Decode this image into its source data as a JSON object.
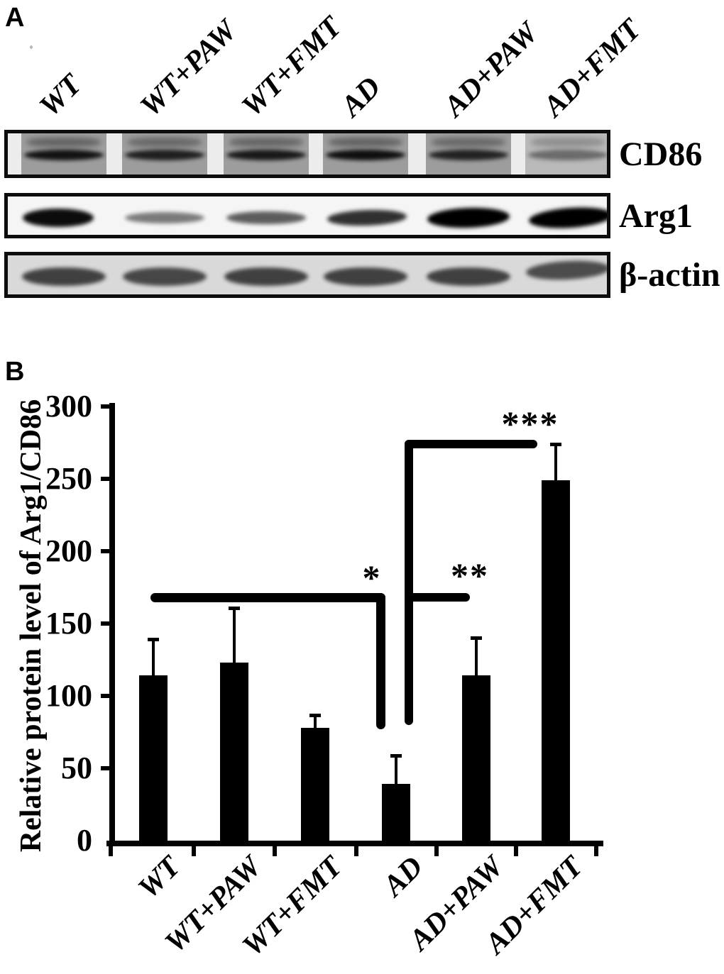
{
  "figure": {
    "panel_a": {
      "label": "A",
      "lane_labels": [
        "WT",
        "WT+PAW",
        "WT+FMT",
        "AD",
        "AD+PAW",
        "AD+FMT"
      ],
      "blots": [
        {
          "protein": "CD86",
          "band_intensities": [
            0.88,
            0.8,
            0.84,
            0.9,
            0.78,
            0.42
          ]
        },
        {
          "protein": "Arg1",
          "band_intensities": [
            0.95,
            0.5,
            0.62,
            0.8,
            1.0,
            1.0
          ]
        },
        {
          "protein": "β-actin",
          "band_intensities": [
            0.78,
            0.75,
            0.78,
            0.78,
            0.78,
            0.72
          ]
        }
      ]
    },
    "panel_b": {
      "label": "B",
      "chart_data": {
        "type": "bar",
        "categories": [
          "WT",
          "WT+PAW",
          "WT+FMT",
          "AD",
          "AD+PAW",
          "AD+FMT"
        ],
        "values": [
          114,
          123,
          78,
          39,
          114,
          249
        ],
        "errors": [
          25,
          38,
          9,
          20,
          26,
          25
        ],
        "title": "",
        "xlabel": "",
        "ylabel": "Relative protein level of Arg1/CD86",
        "yticks": [
          0,
          50,
          100,
          150,
          200,
          250,
          300
        ],
        "ylim": [
          0,
          300
        ],
        "grid": false,
        "legend": false,
        "bar_color": "#000000",
        "significance": [
          {
            "symbol": "*",
            "compares": "WT,WT+PAW,WT+FMT vs AD",
            "line_value": 168
          },
          {
            "symbol": "**",
            "compares": "AD vs AD+PAW",
            "line_value": 168
          },
          {
            "symbol": "***",
            "compares": "AD vs AD+FMT",
            "line_value": 274
          }
        ]
      }
    }
  }
}
